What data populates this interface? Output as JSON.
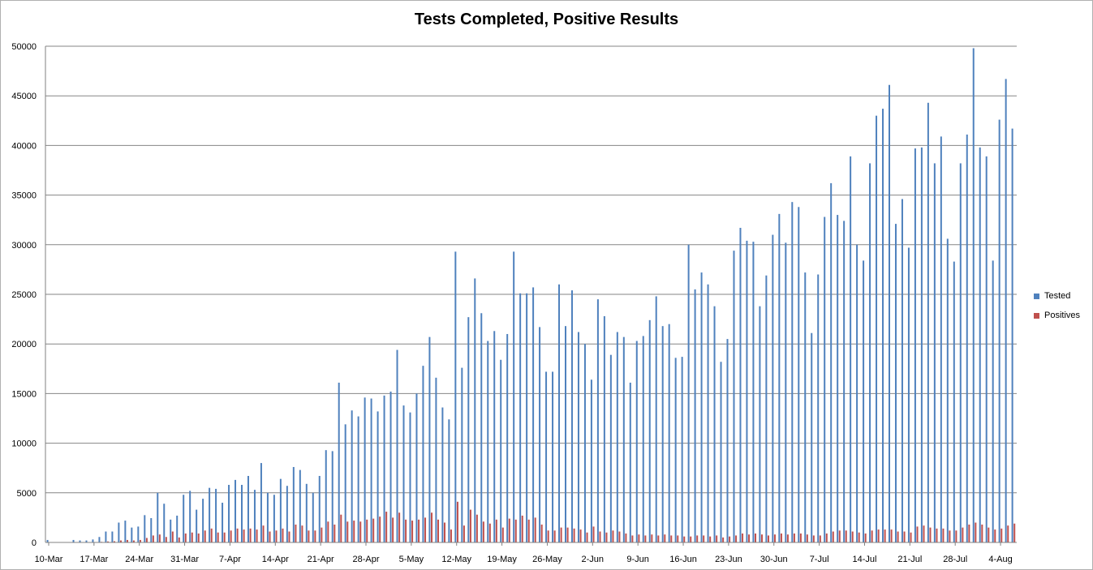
{
  "chart_data": {
    "type": "bar",
    "title": "Tests Completed, Positive Results",
    "xlabel": "",
    "ylabel": "",
    "ylim": [
      0,
      50000
    ],
    "yticks": [
      0,
      5000,
      10000,
      15000,
      20000,
      25000,
      30000,
      35000,
      40000,
      45000,
      50000
    ],
    "grid": true,
    "legend_position": "right",
    "tick_labels": [
      "10-Mar",
      "17-Mar",
      "24-Mar",
      "31-Mar",
      "7-Apr",
      "14-Apr",
      "21-Apr",
      "28-Apr",
      "5-May",
      "12-May",
      "19-May",
      "26-May",
      "2-Jun",
      "9-Jun",
      "16-Jun",
      "23-Jun",
      "30-Jun",
      "7-Jul",
      "14-Jul",
      "21-Jul",
      "28-Jul",
      "4-Aug"
    ],
    "categories": [
      "10-Mar",
      "11-Mar",
      "12-Mar",
      "13-Mar",
      "14-Mar",
      "15-Mar",
      "16-Mar",
      "17-Mar",
      "18-Mar",
      "19-Mar",
      "20-Mar",
      "21-Mar",
      "22-Mar",
      "23-Mar",
      "24-Mar",
      "25-Mar",
      "26-Mar",
      "27-Mar",
      "28-Mar",
      "29-Mar",
      "30-Mar",
      "31-Mar",
      "1-Apr",
      "2-Apr",
      "3-Apr",
      "4-Apr",
      "5-Apr",
      "6-Apr",
      "7-Apr",
      "8-Apr",
      "9-Apr",
      "10-Apr",
      "11-Apr",
      "12-Apr",
      "13-Apr",
      "14-Apr",
      "15-Apr",
      "16-Apr",
      "17-Apr",
      "18-Apr",
      "19-Apr",
      "20-Apr",
      "21-Apr",
      "22-Apr",
      "23-Apr",
      "24-Apr",
      "25-Apr",
      "26-Apr",
      "27-Apr",
      "28-Apr",
      "29-Apr",
      "30-Apr",
      "1-May",
      "2-May",
      "3-May",
      "4-May",
      "5-May",
      "6-May",
      "7-May",
      "8-May",
      "9-May",
      "10-May",
      "11-May",
      "12-May",
      "13-May",
      "14-May",
      "15-May",
      "16-May",
      "17-May",
      "18-May",
      "19-May",
      "20-May",
      "21-May",
      "22-May",
      "23-May",
      "24-May",
      "25-May",
      "26-May",
      "27-May",
      "28-May",
      "29-May",
      "30-May",
      "31-May",
      "1-Jun",
      "2-Jun",
      "3-Jun",
      "4-Jun",
      "5-Jun",
      "6-Jun",
      "7-Jun",
      "8-Jun",
      "9-Jun",
      "10-Jun",
      "11-Jun",
      "12-Jun",
      "13-Jun",
      "14-Jun",
      "15-Jun",
      "16-Jun",
      "17-Jun",
      "18-Jun",
      "19-Jun",
      "20-Jun",
      "21-Jun",
      "22-Jun",
      "23-Jun",
      "24-Jun",
      "25-Jun",
      "26-Jun",
      "27-Jun",
      "28-Jun",
      "29-Jun",
      "30-Jun",
      "1-Jul",
      "2-Jul",
      "3-Jul",
      "4-Jul",
      "5-Jul",
      "6-Jul",
      "7-Jul",
      "8-Jul",
      "9-Jul",
      "10-Jul",
      "11-Jul",
      "12-Jul",
      "13-Jul",
      "14-Jul",
      "15-Jul",
      "16-Jul",
      "17-Jul",
      "18-Jul",
      "19-Jul",
      "20-Jul",
      "21-Jul",
      "22-Jul",
      "23-Jul",
      "24-Jul",
      "25-Jul",
      "26-Jul",
      "27-Jul",
      "28-Jul",
      "29-Jul",
      "30-Jul",
      "31-Jul",
      "1-Aug",
      "2-Aug",
      "3-Aug",
      "4-Aug",
      "5-Aug",
      "6-Aug"
    ],
    "series": [
      {
        "name": "Tested",
        "color": "#4f81bd",
        "values": [
          250,
          0,
          0,
          0,
          250,
          200,
          200,
          300,
          550,
          1100,
          1100,
          2000,
          2200,
          1500,
          1600,
          2750,
          2450,
          5000,
          3900,
          2300,
          2700,
          4800,
          5200,
          3300,
          4400,
          5500,
          5400,
          4000,
          5800,
          6300,
          5800,
          6700,
          5300,
          8000,
          5000,
          4800,
          6400,
          5700,
          7600,
          7300,
          5900,
          5000,
          6700,
          9300,
          9200,
          16100,
          11900,
          13300,
          12700,
          14600,
          14500,
          13200,
          14800,
          15200,
          19400,
          13800,
          13100,
          15000,
          17800,
          20700,
          16600,
          13600,
          12400,
          29300,
          17600,
          22700,
          26600,
          23100,
          20300,
          21300,
          18400,
          21000,
          29300,
          25100,
          25100,
          25700,
          21700,
          17200,
          17200,
          26000,
          21800,
          25400,
          21200,
          20000,
          16400,
          24500,
          22800,
          18900,
          21200,
          20700,
          16100,
          20300,
          20800,
          22400,
          24800,
          21800,
          22000,
          18600,
          18700,
          30000,
          25500,
          27200,
          26000,
          23800,
          18200,
          20500,
          29400,
          31700,
          30400,
          30300,
          23800,
          26900,
          31000,
          33100,
          30200,
          34300,
          33800,
          27200,
          21100,
          27000,
          32800,
          36200,
          33000,
          32400,
          38900,
          30000,
          28400,
          38200,
          43000,
          43700,
          46100,
          32100,
          34600,
          29700,
          39700,
          39800,
          44300,
          38200,
          40900,
          30600,
          28300,
          38200,
          41100,
          49800,
          39800,
          38900,
          28400,
          42600,
          46700,
          41700
        ]
      },
      {
        "name": "Positives",
        "color": "#c0504d",
        "values": [
          0,
          0,
          0,
          0,
          0,
          0,
          0,
          40,
          60,
          100,
          120,
          200,
          250,
          200,
          250,
          450,
          700,
          800,
          550,
          1100,
          500,
          900,
          1000,
          900,
          1200,
          1400,
          1000,
          1000,
          1200,
          1400,
          1300,
          1400,
          1300,
          1700,
          1100,
          1200,
          1400,
          1100,
          1800,
          1700,
          1200,
          1200,
          1500,
          2100,
          1800,
          2800,
          2100,
          2200,
          2100,
          2300,
          2400,
          2600,
          3100,
          2500,
          3000,
          2300,
          2200,
          2300,
          2500,
          3000,
          2300,
          2000,
          1300,
          4100,
          1700,
          3300,
          2800,
          2100,
          1900,
          2300,
          1500,
          2400,
          2300,
          2700,
          2300,
          2500,
          1800,
          1200,
          1200,
          1500,
          1500,
          1400,
          1300,
          1000,
          1600,
          1100,
          1000,
          1200,
          1100,
          900,
          700,
          800,
          700,
          800,
          700,
          800,
          700,
          700,
          600,
          600,
          700,
          700,
          600,
          700,
          500,
          600,
          700,
          900,
          800,
          900,
          800,
          700,
          800,
          900,
          800,
          900,
          900,
          800,
          700,
          700,
          900,
          1100,
          1200,
          1200,
          1100,
          1000,
          900,
          1200,
          1300,
          1300,
          1300,
          1100,
          1100,
          1000,
          1600,
          1700,
          1500,
          1400,
          1400,
          1200,
          1200,
          1500,
          1800,
          2000,
          1800,
          1500,
          1300,
          1400,
          1700,
          1900
        ]
      }
    ]
  }
}
